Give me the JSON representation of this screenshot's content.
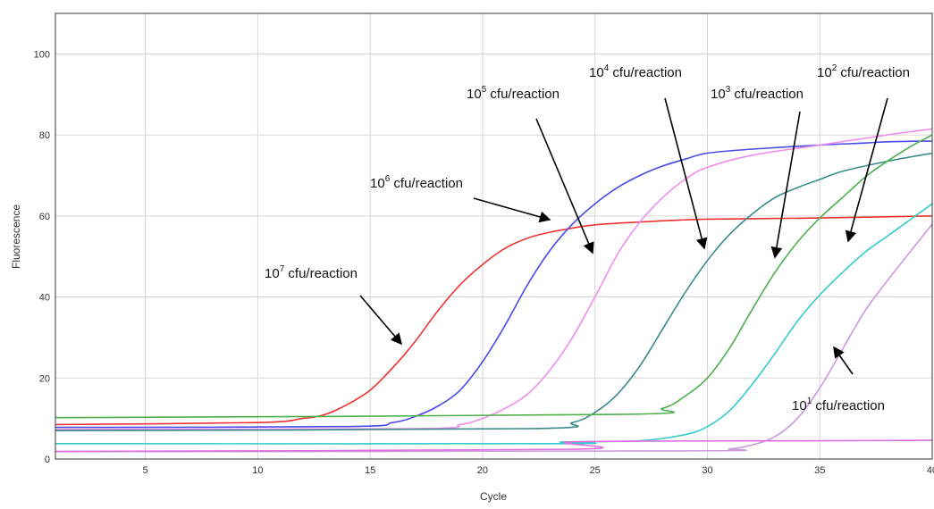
{
  "chart_data": {
    "type": "line",
    "title": "",
    "xlabel": "Cycle",
    "ylabel": "Fluorescence",
    "xlim": [
      1,
      40
    ],
    "ylim": [
      0,
      110
    ],
    "xticks": [
      5,
      10,
      15,
      20,
      25,
      30,
      35,
      40
    ],
    "yticks": [
      0,
      20,
      40,
      60,
      80,
      100
    ],
    "grid": true,
    "colors": {
      "red": "#ee3333",
      "blue": "#4a4ae8",
      "pink": "#f08cf0",
      "teal": "#3a8c8c",
      "green": "#4caf4c",
      "cyan": "#33cccc",
      "lilac": "#cc99dd",
      "flat_pink": "#e070e0",
      "grid": "#d6d6d6",
      "arrow": "#000000"
    },
    "series": [
      {
        "key": "red",
        "x": [
          1,
          10,
          12,
          13,
          14,
          15,
          16,
          17,
          18,
          19,
          20,
          21,
          22,
          23,
          24,
          25,
          27,
          30,
          35,
          40
        ],
        "y": [
          8.5,
          9,
          10,
          11,
          13.5,
          17,
          22.5,
          29,
          36.5,
          43,
          48,
          52,
          54.5,
          56,
          57,
          57.8,
          58.5,
          59.2,
          59.5,
          60
        ]
      },
      {
        "key": "blue",
        "x": [
          1,
          14,
          16,
          17,
          18,
          19,
          20,
          21,
          22,
          23,
          24,
          25,
          26,
          27,
          28,
          29,
          30,
          32,
          35,
          37,
          38,
          40
        ],
        "y": [
          7.8,
          8,
          9,
          10.5,
          13,
          17,
          24,
          33,
          43,
          51.5,
          58,
          63,
          67,
          70,
          72.3,
          74,
          75.5,
          76.5,
          77.5,
          78,
          78.3,
          78.5
        ]
      },
      {
        "key": "pink",
        "x": [
          1,
          17,
          19,
          20,
          21,
          22,
          23,
          24,
          25,
          26,
          27,
          28,
          29,
          30,
          32,
          35,
          38,
          40
        ],
        "y": [
          7.3,
          7.5,
          8.5,
          10,
          12.5,
          16,
          22,
          30,
          40,
          50.5,
          58.5,
          64.5,
          69,
          72,
          75,
          77.5,
          80,
          81.5
        ]
      },
      {
        "key": "teal",
        "x": [
          1,
          22,
          24,
          25,
          26,
          27,
          28,
          29,
          30,
          31,
          32,
          33,
          34,
          35,
          36,
          38,
          40
        ],
        "y": [
          7,
          7.5,
          9,
          11.5,
          16,
          23,
          32,
          41,
          49,
          55.5,
          60.5,
          64.5,
          67,
          69,
          71,
          73.5,
          75.5
        ]
      },
      {
        "key": "green",
        "x": [
          1,
          26,
          28,
          29,
          30,
          31,
          32,
          33,
          34,
          35,
          36,
          37,
          38,
          39,
          40
        ],
        "y": [
          10.2,
          11,
          12.5,
          15.5,
          20,
          27.5,
          37,
          46,
          53.5,
          59.5,
          64.5,
          69.5,
          73.5,
          77,
          80
        ]
      },
      {
        "key": "cyan",
        "x": [
          1,
          23.5,
          23.5,
          27,
          29,
          30,
          31,
          32,
          33,
          34,
          35,
          36,
          37,
          38,
          39,
          40
        ],
        "y": [
          3.8,
          3.8,
          4.2,
          4.5,
          6,
          8,
          12,
          18.5,
          26,
          34,
          40.5,
          46,
          51,
          55,
          59,
          63
        ]
      },
      {
        "key": "lilac",
        "x": [
          1,
          29,
          31,
          32,
          33,
          34,
          35,
          36,
          37,
          38,
          39,
          40
        ],
        "y": [
          1.8,
          2,
          2.5,
          3.5,
          5.5,
          10,
          17.5,
          27,
          36.5,
          44,
          51,
          58
        ]
      },
      {
        "key": "flat_pink",
        "x": [
          1,
          24,
          24,
          35,
          40
        ],
        "y": [
          1.9,
          2.4,
          4.2,
          4.5,
          4.6
        ]
      }
    ],
    "annotations": [
      {
        "base": "10",
        "sup": "7",
        "text": " cfu/reaction"
      },
      {
        "base": "10",
        "sup": "6",
        "text": " cfu/reaction"
      },
      {
        "base": "10",
        "sup": "5",
        "text": " cfu/reaction"
      },
      {
        "base": "10",
        "sup": "4",
        "text": " cfu/reaction"
      },
      {
        "base": "10",
        "sup": "3",
        "text": " cfu/reaction"
      },
      {
        "base": "10",
        "sup": "2",
        "text": " cfu/reaction"
      },
      {
        "base": "10",
        "sup": "1",
        "text": " cfu/reaction"
      }
    ]
  }
}
